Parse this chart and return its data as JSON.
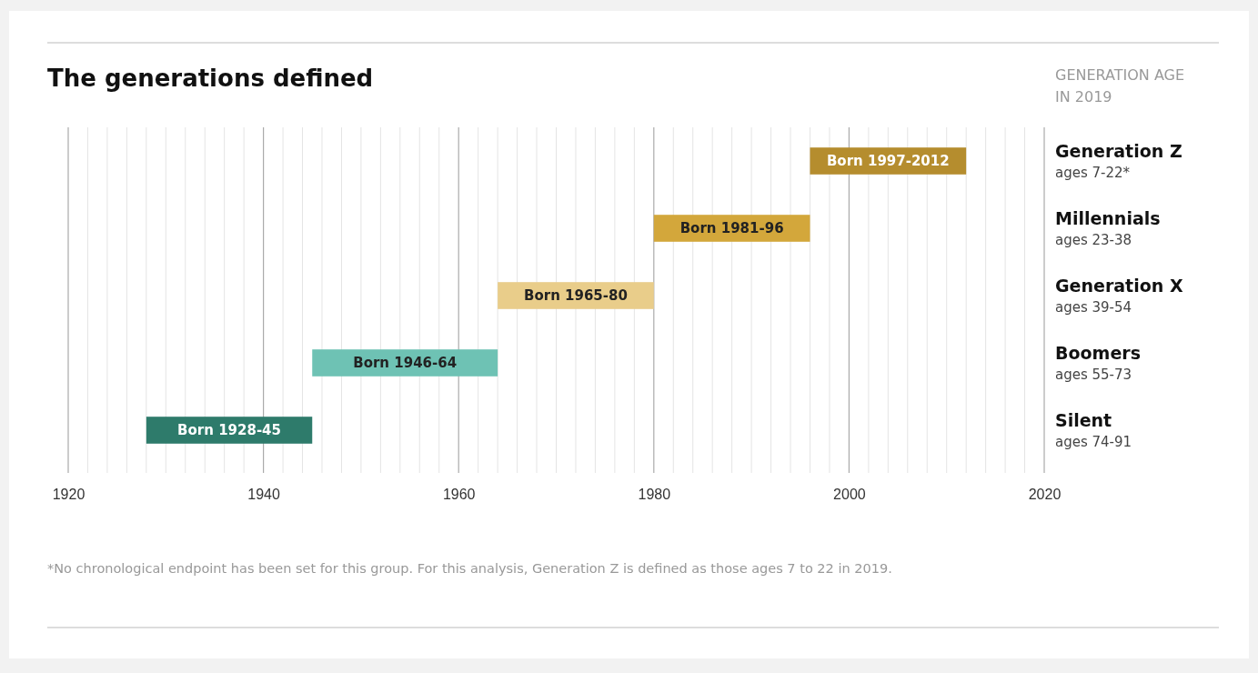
{
  "chart_data": {
    "type": "bar",
    "orientation": "horizontal",
    "title": "The generations defined",
    "ylabel": "GENERATION AGE IN 2019",
    "categories": [
      "Generation Z\nages 7-22*",
      "Millennials\nages 23-38",
      "Generation X\nages 39-54",
      "Boomers\nages 55-73",
      "Silent\nages 74-91"
    ],
    "base": [
      1996,
      1980,
      1964,
      1945,
      1928
    ],
    "values": [
      16,
      16,
      16,
      19,
      17
    ],
    "colors": [
      "#b58d2e",
      "#d3a73b",
      "#e9cd8a",
      "#6ec2b4",
      "#2e7b6b"
    ],
    "value_labels": [
      "Born 1997-2012",
      "Born 1981-96",
      "Born 1965-80",
      "Born 1946-64",
      "Born 1928-45"
    ],
    "xlim": [
      1920,
      2020
    ],
    "xticks": [
      1920,
      {
        "value": 1922,
        "label": null
      },
      {
        "value": 1924,
        "label": null
      },
      {
        "value": 1926,
        "label": null
      },
      {
        "value": 1928,
        "label": null
      },
      {
        "value": 1930,
        "label": null
      },
      {
        "value": 1932,
        "label": null
      },
      {
        "value": 1934,
        "label": null
      },
      {
        "value": 1936,
        "label": null
      },
      {
        "value": 1938,
        "label": null
      },
      1940,
      {
        "value": 1942,
        "label": null
      },
      {
        "value": 1944,
        "label": null
      },
      {
        "value": 1946,
        "label": null
      },
      {
        "value": 1948,
        "label": null
      },
      {
        "value": 1950,
        "label": null
      },
      {
        "value": 1952,
        "label": null
      },
      {
        "value": 1954,
        "label": null
      },
      {
        "value": 1956,
        "label": null
      },
      {
        "value": 1958,
        "label": null
      },
      1960,
      {
        "value": 1962,
        "label": null
      },
      {
        "value": 1964,
        "label": null
      },
      {
        "value": 1966,
        "label": null
      },
      {
        "value": 1968,
        "label": null
      },
      {
        "value": 1970,
        "label": null
      },
      {
        "value": 1972,
        "label": null
      },
      {
        "value": 1974,
        "label": null
      },
      {
        "value": 1976,
        "label": null
      },
      {
        "value": 1978,
        "label": null
      },
      1980,
      {
        "value": 1982,
        "label": null
      },
      {
        "value": 1984,
        "label": null
      },
      {
        "value": 1986,
        "label": null
      },
      {
        "value": 1988,
        "label": null
      },
      {
        "value": 1990,
        "label": null
      },
      {
        "value": 1992,
        "label": null
      },
      {
        "value": 1994,
        "label": null
      },
      {
        "value": 1996,
        "label": null
      },
      {
        "value": 1998,
        "label": null
      },
      2000,
      {
        "value": 2002,
        "label": null
      },
      {
        "value": 2004,
        "label": null
      },
      {
        "value": 2006,
        "label": null
      },
      {
        "value": 2008,
        "label": null
      },
      {
        "value": 2010,
        "label": null
      },
      {
        "value": 2012,
        "label": null
      },
      {
        "value": 2014,
        "label": null
      },
      {
        "value": 2016,
        "label": null
      },
      {
        "value": 2018,
        "label": null
      },
      2020
    ],
    "grid": "x",
    "annotations": [
      "*No chronological endpoint has been set for this group. For this analysis, Generation Z is defined as those ages 7 to 22 in 2019."
    ]
  }
}
